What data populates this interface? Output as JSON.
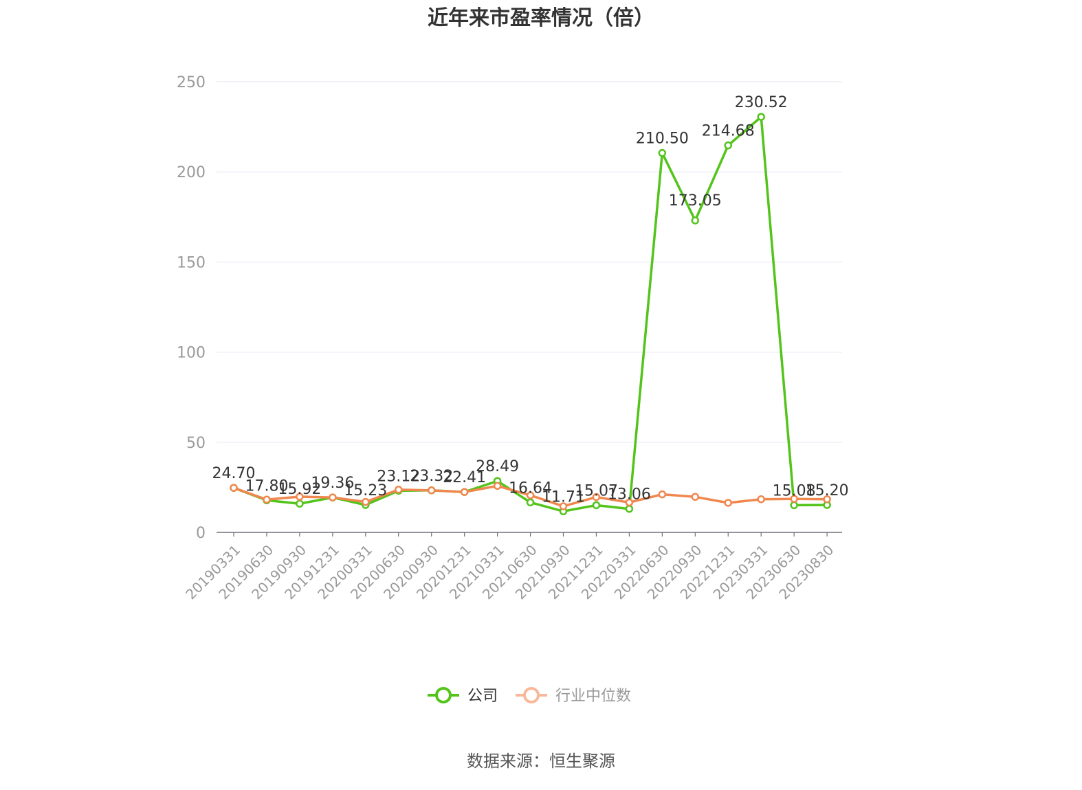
{
  "chart_data": {
    "type": "line",
    "title": "近年来市盈率情况（倍）",
    "xlabel": "",
    "ylabel": "",
    "ylim": [
      0,
      250
    ],
    "yticks": [
      0,
      50,
      100,
      150,
      200,
      250
    ],
    "grid": true,
    "legend_position": "bottom",
    "categories": [
      "20190331",
      "20190630",
      "20190930",
      "20191231",
      "20200331",
      "20200630",
      "20200930",
      "20201231",
      "20210331",
      "20210630",
      "20210930",
      "20211231",
      "20220331",
      "20220630",
      "20220930",
      "20221231",
      "20230331",
      "20230630",
      "20230830"
    ],
    "series": [
      {
        "name": "公司",
        "color": "#52c41a",
        "values": [
          24.7,
          17.8,
          15.92,
          19.36,
          15.23,
          23.12,
          23.32,
          22.41,
          28.49,
          16.64,
          11.71,
          15.07,
          13.06,
          210.5,
          173.05,
          214.68,
          230.52,
          15.08,
          15.2
        ],
        "labels": [
          "24.70",
          "17.80",
          "15.92",
          "19.36",
          "15.23",
          "23.12",
          "23.32",
          "22.41",
          "28.49",
          "16.64",
          "11.71",
          "15.07",
          "13.06",
          "210.50",
          "173.05",
          "214.68",
          "230.52",
          "15.08",
          "15.20"
        ]
      },
      {
        "name": "行业中位数",
        "color": "#f0874f",
        "legend_color": "#f7b99a",
        "values": [
          24.7,
          18.2,
          19.8,
          19.4,
          16.9,
          23.7,
          23.3,
          22.4,
          25.8,
          20.6,
          14.5,
          19.6,
          16.6,
          21.1,
          19.7,
          16.4,
          18.4,
          18.6,
          18.4
        ]
      }
    ]
  },
  "source": "数据来源：恒生聚源"
}
